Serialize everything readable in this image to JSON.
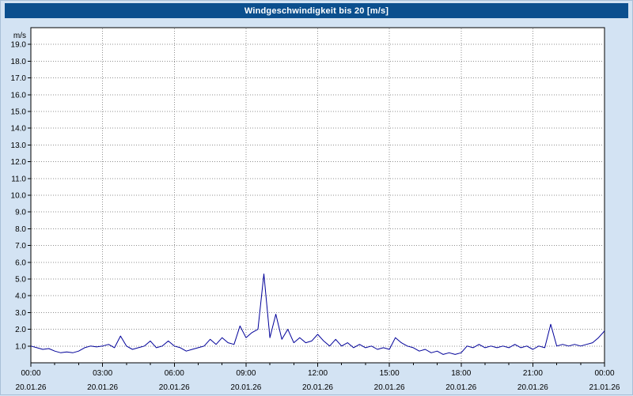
{
  "header": {
    "title": "Windgeschwindigkeit bis 20 [m/s]"
  },
  "colors": {
    "titlebar_bg": "#0b4f8e",
    "page_bg": "#d3e3f3",
    "plot_bg": "#ffffff",
    "grid_color": "#8f8f8f",
    "axis_color": "#000000",
    "line_color": "#000099"
  },
  "chart_data": {
    "type": "line",
    "title": "Windgeschwindigkeit bis 20 [m/s]",
    "ylabel_unit": "m/s",
    "ylim": [
      0,
      20
    ],
    "ytick_step": 1,
    "ytick_labels": [
      "1.0",
      "2.0",
      "3.0",
      "4.0",
      "5.0",
      "6.0",
      "7.0",
      "8.0",
      "9.0",
      "10.0",
      "11.0",
      "12.0",
      "13.0",
      "14.0",
      "15.0",
      "16.0",
      "17.0",
      "18.0",
      "19.0"
    ],
    "x_hours_range": [
      0,
      24
    ],
    "xtick_hours": [
      0,
      3,
      6,
      9,
      12,
      15,
      18,
      21,
      24
    ],
    "xtick_labels": [
      "00:00",
      "03:00",
      "06:00",
      "09:00",
      "12:00",
      "15:00",
      "18:00",
      "21:00",
      "00:00"
    ],
    "xtick_dates": [
      "20.01.26",
      "20.01.26",
      "20.01.26",
      "20.01.26",
      "20.01.26",
      "20.01.26",
      "20.01.26",
      "20.01.26",
      "21.01.26"
    ],
    "grid": "dotted",
    "legend": "none",
    "sample_interval_hours": 0.25,
    "values": [
      1.0,
      0.9,
      0.8,
      0.85,
      0.7,
      0.6,
      0.65,
      0.6,
      0.7,
      0.9,
      1.0,
      0.95,
      1.0,
      1.1,
      0.9,
      1.6,
      1.0,
      0.8,
      0.9,
      1.0,
      1.3,
      0.9,
      1.0,
      1.3,
      1.0,
      0.9,
      0.7,
      0.8,
      0.9,
      1.0,
      1.4,
      1.1,
      1.5,
      1.2,
      1.1,
      2.2,
      1.5,
      1.8,
      2.0,
      5.3,
      1.5,
      2.9,
      1.4,
      2.0,
      1.2,
      1.5,
      1.2,
      1.3,
      1.7,
      1.3,
      1.0,
      1.4,
      1.0,
      1.2,
      0.9,
      1.1,
      0.9,
      1.0,
      0.8,
      0.9,
      0.8,
      1.5,
      1.2,
      1.0,
      0.9,
      0.7,
      0.8,
      0.6,
      0.7,
      0.5,
      0.6,
      0.5,
      0.6,
      1.0,
      0.9,
      1.1,
      0.9,
      1.0,
      0.9,
      1.0,
      0.9,
      1.1,
      0.9,
      1.0,
      0.8,
      1.0,
      0.9,
      2.3,
      1.0,
      1.1,
      1.0,
      1.1,
      1.0,
      1.1,
      1.2,
      1.5,
      1.9
    ]
  }
}
